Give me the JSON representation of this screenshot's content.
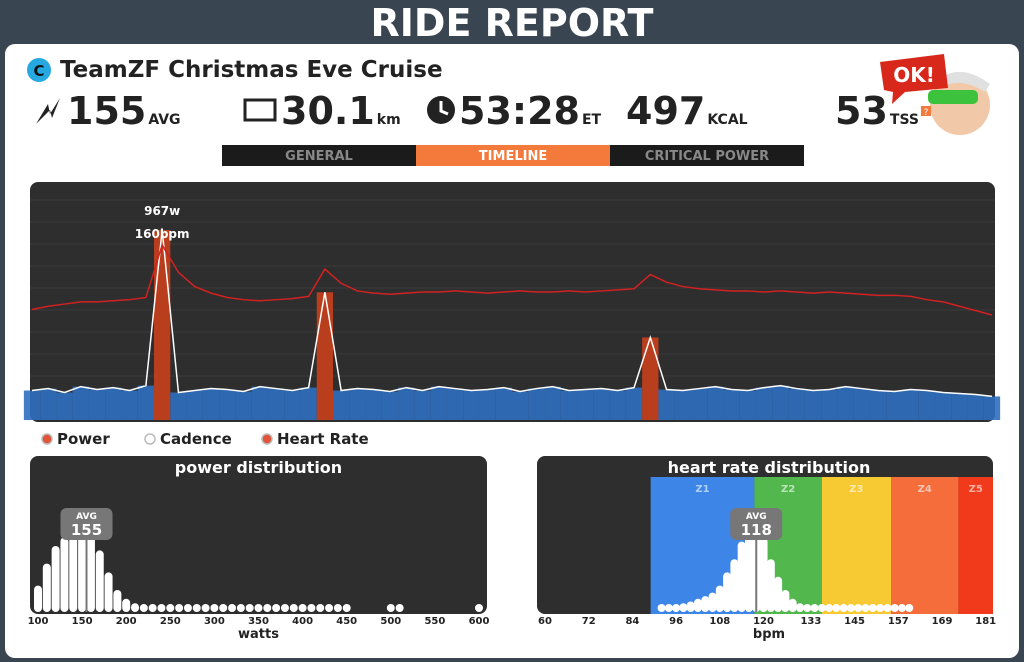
{
  "header": {
    "title": "RIDE REPORT"
  },
  "ride": {
    "badge": "C",
    "name": "TeamZF Christmas Eve Cruise"
  },
  "stats": [
    {
      "value": "155",
      "unit": "AVG"
    },
    {
      "value": "30.1",
      "unit": "km"
    },
    {
      "value": "53:28",
      "unit": "ET"
    },
    {
      "value": "497",
      "unit": "KCAL"
    },
    {
      "value": "53",
      "unit": "TSS",
      "info": "?"
    }
  ],
  "mascot": {
    "bubble": "OK!"
  },
  "tabs": {
    "items": [
      "GENERAL",
      "TIMELINE",
      "CRITICAL POWER"
    ],
    "active": 1
  },
  "timeline": {
    "peak_power_label": "967w",
    "peak_hr_label": "160bpm",
    "power": {
      "name": "Power",
      "color": "#2f6fc0",
      "values": [
        150,
        160,
        140,
        170,
        155,
        165,
        150,
        175,
        967,
        140,
        150,
        160,
        155,
        145,
        170,
        160,
        150,
        165,
        650,
        150,
        160,
        155,
        145,
        165,
        150,
        170,
        160,
        150,
        155,
        165,
        145,
        160,
        170,
        150,
        155,
        160,
        150,
        165,
        420,
        155,
        150,
        160,
        170,
        155,
        150,
        165,
        175,
        160,
        150,
        155,
        170,
        160,
        150,
        145,
        155,
        150,
        140,
        135,
        130,
        120
      ]
    },
    "heart_rate": {
      "name": "Heart Rate",
      "color": "#d32020",
      "values": [
        101,
        104,
        106,
        108,
        108,
        109,
        110,
        112,
        160,
        135,
        122,
        116,
        112,
        110,
        109,
        110,
        111,
        113,
        138,
        125,
        118,
        116,
        115,
        116,
        117,
        117,
        118,
        117,
        116,
        117,
        118,
        117,
        117,
        118,
        117,
        118,
        119,
        120,
        133,
        126,
        122,
        120,
        119,
        118,
        118,
        117,
        118,
        117,
        116,
        117,
        116,
        115,
        114,
        114,
        113,
        110,
        108,
        104,
        100,
        96
      ]
    },
    "legend": [
      "Power",
      "Cadence",
      "Heart Rate"
    ]
  },
  "power_distribution": {
    "type": "bar",
    "title": "power distribution",
    "x_label": "watts",
    "avg_label": "AVG",
    "avg": 155,
    "x": [
      100,
      110,
      120,
      130,
      140,
      150,
      160,
      170,
      180,
      190,
      200,
      210,
      220,
      230,
      240,
      250,
      260,
      270,
      280,
      290,
      300,
      310,
      320,
      330,
      340,
      350,
      360,
      370,
      380,
      390,
      400,
      410,
      420,
      430,
      440,
      450,
      500,
      510,
      600
    ],
    "values": [
      30,
      55,
      75,
      85,
      95,
      100,
      90,
      70,
      45,
      25,
      15,
      10,
      8,
      6,
      5,
      3,
      3,
      3,
      3,
      3,
      3,
      3,
      3,
      3,
      3,
      3,
      3,
      3,
      3,
      3,
      3,
      3,
      3,
      3,
      3,
      3,
      3,
      3,
      3
    ],
    "color": "#ffffff",
    "xlim": [
      100,
      600
    ],
    "xticks": [
      100,
      150,
      200,
      250,
      300,
      350,
      400,
      450,
      500,
      550,
      600
    ]
  },
  "heart_rate_distribution": {
    "type": "bar",
    "title": "heart rate distribution",
    "x_label": "bpm",
    "avg_label": "AVG",
    "avg": 118,
    "x": [
      92,
      94,
      96,
      98,
      100,
      102,
      104,
      106,
      108,
      110,
      112,
      114,
      116,
      118,
      120,
      122,
      124,
      126,
      128,
      130,
      132,
      134,
      136,
      138,
      140,
      142,
      144,
      146,
      148,
      150,
      152,
      154,
      156,
      158,
      160
    ],
    "values": [
      3,
      5,
      8,
      10,
      12,
      15,
      18,
      22,
      30,
      45,
      60,
      80,
      100,
      95,
      85,
      60,
      40,
      25,
      15,
      10,
      8,
      6,
      5,
      5,
      4,
      4,
      4,
      4,
      4,
      4,
      4,
      4,
      4,
      4,
      4
    ],
    "color": "#ffffff",
    "zones": [
      {
        "name": "Z1",
        "from": 89,
        "to": 117.5,
        "color": "#3d86e8"
      },
      {
        "name": "Z2",
        "from": 117.5,
        "to": 136,
        "color": "#52b84e"
      },
      {
        "name": "Z3",
        "from": 136,
        "to": 155,
        "color": "#f7c933"
      },
      {
        "name": "Z4",
        "from": 155,
        "to": 173.5,
        "color": "#f66d3c"
      },
      {
        "name": "Z5",
        "from": 173.5,
        "to": 183,
        "color": "#f03a1b"
      }
    ],
    "xlim": [
      60,
      183
    ],
    "xticks": [
      60,
      72,
      84,
      96,
      108,
      120,
      133,
      145,
      157,
      169,
      181
    ]
  }
}
